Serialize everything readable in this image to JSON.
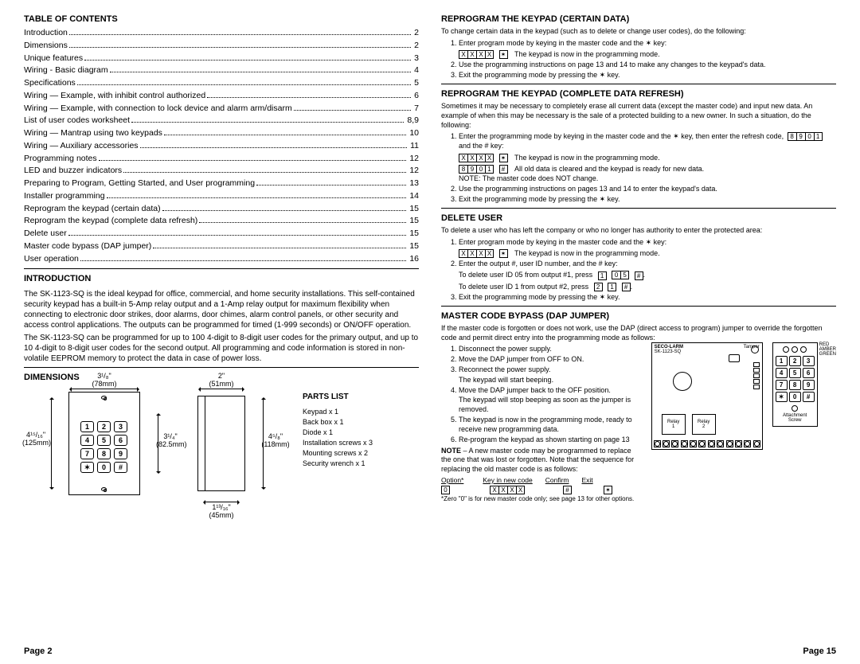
{
  "left": {
    "toc_title": "TABLE OF CONTENTS",
    "toc": [
      {
        "label": "Introduction",
        "page": "2"
      },
      {
        "label": "Dimensions",
        "page": "2"
      },
      {
        "label": "Unique features",
        "page": "3"
      },
      {
        "label": "Wiring - Basic diagram",
        "page": "4"
      },
      {
        "label": "Specifications",
        "page": "5"
      },
      {
        "label": "Wiring — Example, with inhibit control authorized",
        "page": "6"
      },
      {
        "label": "Wiring — Example, with connection to lock device and alarm arm/disarm",
        "page": "7"
      },
      {
        "label": "List of user codes worksheet",
        "page": "8,9"
      },
      {
        "label": "Wiring — Mantrap using two keypads",
        "page": "10"
      },
      {
        "label": "Wiring — Auxiliary accessories",
        "page": "11"
      },
      {
        "label": "Programming notes",
        "page": "12"
      },
      {
        "label": "LED and buzzer indicators",
        "page": "12"
      },
      {
        "label": "Preparing to Program, Getting Started, and User programming",
        "page": "13"
      },
      {
        "label": "Installer programming",
        "page": "14"
      },
      {
        "label": "Reprogram the keypad (certain data)",
        "page": "15"
      },
      {
        "label": "Reprogram the keypad (complete data refresh)",
        "page": "15"
      },
      {
        "label": "Delete user",
        "page": "15"
      },
      {
        "label": "Master code bypass (DAP jumper)",
        "page": "15"
      },
      {
        "label": "User operation",
        "page": "16"
      }
    ],
    "intro_title": "INTRODUCTION",
    "intro_text": "The SK-1123-SQ is the ideal keypad for office, commercial, and home security installations. This self-contained security keypad has a built-in 5-Amp relay output and a 1-Amp relay output for maximum flexibility when connecting to electronic door strikes, door alarms, door chimes, alarm control panels, or other security and access control applications. The outputs can be programmed for timed (1-999 seconds) or ON/OFF operation.",
    "intro_text2": "The SK-1123-SQ can be programmed for up to 100 4-digit to 8-digit user codes for the primary output, and up to 10 4-digit to 8-digit user codes for the second output. All programming and code information is stored in non-volatile EEPROM memory to protect the data in case of power loss.",
    "dimensions_title": "DIMENSIONS",
    "dims": {
      "front_w_in": "3¹/₈\"",
      "front_w_mm": "(78mm)",
      "front_h_in": "4¹⁵/₁₆\"",
      "front_h_mm": "(125mm)",
      "front_inner_h_in": "3¹/₄\"",
      "front_inner_h_mm": "(82.5mm)",
      "side_w_in": "2\"",
      "side_w_mm": "(51mm)",
      "side_h_in": "4⁵/₈\"",
      "side_h_mm": "(118mm)",
      "base_w_in": "1¹³/₁₆\"",
      "base_w_mm": "(45mm)"
    },
    "keys": [
      "1",
      "2",
      "3",
      "4",
      "5",
      "6",
      "7",
      "8",
      "9",
      "✶",
      "0",
      "#"
    ],
    "parts_title": "PARTS LIST",
    "parts": [
      "Keypad x 1",
      "Back box x 1",
      "Diode x 1",
      "Installation screws x 3",
      "Mounting screws x 2",
      "Security wrench x 1"
    ],
    "page_num": "Page 2"
  },
  "right": {
    "sec1_title": "REPROGRAM THE KEYPAD (CERTAIN DATA)",
    "sec1_intro": "To change certain data in the keypad (such as to delete or change user codes), do the following:",
    "sec1_steps": [
      "Enter program mode by keying in the master code and the ✶ key:",
      "Use the programming instructions on page 13 and 14 to make any changes to the keypad's data.",
      "Exit the programming mode by pressing the ✶ key."
    ],
    "sec1_seq_note": "The keypad is now in the programming mode.",
    "sec2_title": "REPROGRAM THE KEYPAD (COMPLETE DATA REFRESH)",
    "sec2_intro": "Sometimes it may be necessary to completely erase all current data (except the master code) and input new data. An example of when this may be necessary is the sale of a protected building to a new owner. In such a situation, do the following:",
    "sec2_step1": "Enter the programming mode by keying in the master code and the ✶ key, then enter the refresh code,",
    "sec2_step1b": "and the # key:",
    "sec2_note1": "The keypad is now in the programming mode.",
    "sec2_note2": "All old data is cleared and the keypad is ready for new data.",
    "sec2_note3": "NOTE: The master code does NOT change.",
    "sec2_step2": "Use the programming instructions on pages 13 and 14 to enter the keypad's data.",
    "sec2_step3": "Exit the programming mode by pressing the ✶ key.",
    "sec3_title": "DELETE USER",
    "sec3_intro": "To delete a user who has left the company or who no longer has authority to enter the protected area:",
    "sec3_step1": "Enter program mode by keying in the master code and the ✶ key:",
    "sec3_note1": "The keypad is now in the programming mode.",
    "sec3_step2": "Enter the output #, user ID number, and the # key:",
    "sec3_ex1": "To delete user ID 05 from output #1, press",
    "sec3_ex2": "To delete user ID 1 from output #2, press",
    "sec3_step3": "Exit the programming mode by pressing the ✶ key.",
    "sec4_title": "MASTER CODE BYPASS (DAP jumper)",
    "sec4_intro": "If the master code is forgotten or does not work, use the DAP (direct access to program) jumper to override the forgotten code and permit direct entry into the programming mode as follows:",
    "sec4_steps": [
      "Disconnect the power supply.",
      "Move the DAP jumper from OFF to ON.",
      "Reconnect the power supply.\nThe keypad will start beeping.",
      "Move the DAP jumper back to the OFF position.\nThe keypad will stop beeping as soon as the jumper is removed.",
      "The keypad is now in the programming mode, ready to receive new programming data.",
      "Re-program the keypad as shown starting on page 13"
    ],
    "sec4_note": "NOTE – A new master code may be programmed to replace the one that was lost or forgotten. Note that the sequence for replacing the old master code is as follows:",
    "opt_headers": [
      "Option*",
      "Key in new code",
      "Confirm",
      "Exit"
    ],
    "opt_footnote": "*Zero \"0\" is for new master code only; see page 13 for other options.",
    "pcb": {
      "brand": "SECO-LARM",
      "model": "SK-1123-SQ",
      "tamper": "Tamper",
      "relay1": "Relay\n1",
      "relay2": "Relay\n2"
    },
    "leds": [
      "RED",
      "AMBER",
      "GREEN"
    ],
    "attach_label": "Attachment\nScrew",
    "page_num": "Page 15"
  },
  "colors": {
    "text": "#000000",
    "bg": "#ffffff"
  }
}
